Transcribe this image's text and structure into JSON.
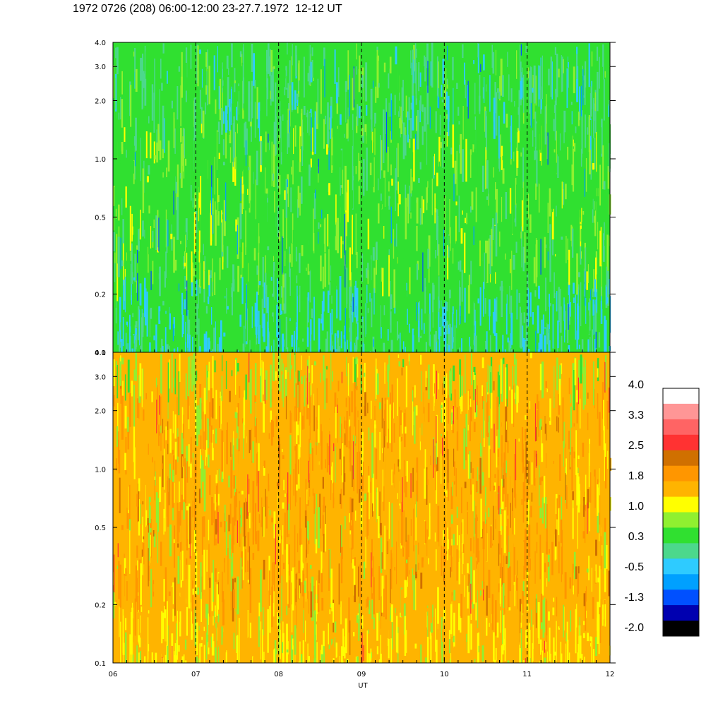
{
  "title": "1972 0726 (208) 06:00-12:00 23-27.7.1972  12-12 UT",
  "chart_data": [
    {
      "type": "heatmap",
      "panel": "upper",
      "x_ticks": [
        "06",
        "07",
        "08",
        "09",
        "10",
        "11",
        "12"
      ],
      "xlim": [
        6,
        12
      ],
      "y_scale": "log",
      "ylim": [
        0.1,
        4.0
      ],
      "y_tick_values": [
        0.1,
        0.2,
        0.5,
        1.0,
        2.0,
        3.0,
        4.0
      ],
      "y_ticks": [
        "0.1",
        "0.2",
        "0.5",
        "1.0",
        "2.0",
        "3.0",
        "4.0"
      ],
      "dashed_hour_lines": [
        7,
        8,
        9,
        10,
        11
      ],
      "dominant_colors": [
        "#30e030",
        "#4cd88c",
        "#2ecbff",
        "#90f030",
        "#00a0ff"
      ]
    },
    {
      "type": "heatmap",
      "panel": "lower",
      "x_ticks": [
        "06",
        "07",
        "08",
        "09",
        "10",
        "11",
        "12"
      ],
      "xlim": [
        6,
        12
      ],
      "xlabel": "UT",
      "y_scale": "log",
      "ylim": [
        0.1,
        4.0
      ],
      "y_tick_values": [
        0.1,
        0.2,
        0.5,
        1.0,
        2.0,
        3.0,
        4.0
      ],
      "y_ticks": [
        "0.1",
        "0.2",
        "0.5",
        "1.0",
        "2.0",
        "3.0",
        "4.0"
      ],
      "dashed_hour_lines": [
        7,
        8,
        9,
        10,
        11
      ],
      "dominant_colors": [
        "#ffb400",
        "#ff9600",
        "#ffff00",
        "#90f030",
        "#d07000"
      ]
    }
  ],
  "colorbar": {
    "labels": [
      "4.0",
      "3.3",
      "2.5",
      "1.8",
      "1.0",
      "0.3",
      "-0.5",
      "-1.3",
      "-2.0"
    ],
    "colors_top_to_bottom": [
      "#ffffff",
      "#ff9696",
      "#ff6464",
      "#ff3232",
      "#d07000",
      "#ff9600",
      "#ffb400",
      "#ffff00",
      "#90f030",
      "#30e030",
      "#4cd88c",
      "#2ecbff",
      "#00a0ff",
      "#0050ff",
      "#0000b0",
      "#000000"
    ]
  }
}
